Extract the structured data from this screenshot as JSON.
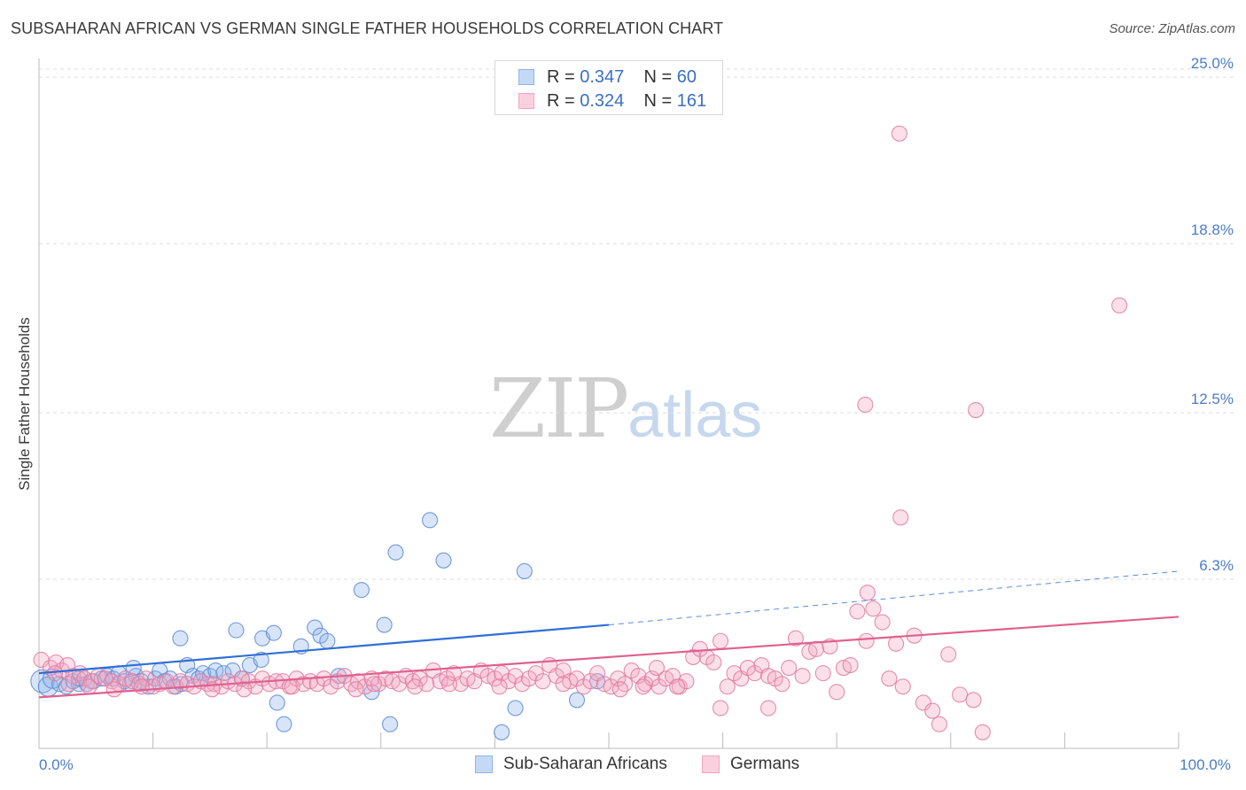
{
  "header": {
    "title": "SUBSAHARAN AFRICAN VS GERMAN SINGLE FATHER HOUSEHOLDS CORRELATION CHART",
    "source": "Source: ZipAtlas.com"
  },
  "watermark": {
    "zip": "ZIP",
    "atlas": "atlas"
  },
  "legend": {
    "r_label": "R =",
    "n_label": "N =",
    "entries": [
      {
        "r": "0.347",
        "n": "60",
        "color": "#8fb4ea"
      },
      {
        "r": "0.324",
        "n": "161",
        "color": "#f4a6bf"
      }
    ]
  },
  "bottom_legend": [
    {
      "label": "Sub-Saharan Africans",
      "color": "#8fb4ea"
    },
    {
      "label": "Germans",
      "color": "#f4a6bf"
    }
  ],
  "chart_data": {
    "type": "scatter",
    "title": "SUBSAHARAN AFRICAN VS GERMAN SINGLE FATHER HOUSEHOLDS CORRELATION CHART",
    "xlabel": "",
    "ylabel": "Single Father Households",
    "xlim": [
      0,
      100
    ],
    "ylim": [
      0,
      25.5
    ],
    "x_tick_labels": [
      {
        "value": 0,
        "label": "0.0%"
      },
      {
        "value": 100,
        "label": "100.0%"
      }
    ],
    "x_minor_ticks": [
      0,
      10,
      20,
      30,
      40,
      50,
      60,
      70,
      80,
      90,
      100
    ],
    "y_ticks": [
      {
        "value": 6.3,
        "label": "6.3%"
      },
      {
        "value": 12.5,
        "label": "12.5%"
      },
      {
        "value": 18.8,
        "label": "18.8%"
      },
      {
        "value": 25.0,
        "label": "25.0%"
      }
    ],
    "grid": true,
    "series": [
      {
        "name": "Sub-Saharan Africans",
        "color": "#8fb4ea",
        "stroke": "#5a8ad6",
        "trend": {
          "x0": 0,
          "y0": 2.8,
          "x1": 50,
          "y1": 4.6,
          "dash_to_x": 100,
          "dash_to_y": 6.6,
          "color": "#2f6fd6"
        },
        "points": [
          [
            0.3,
            2.5
          ],
          [
            0.8,
            2.3
          ],
          [
            1.2,
            2.6
          ],
          [
            1.8,
            2.4
          ],
          [
            2.4,
            2.3
          ],
          [
            3.0,
            2.5
          ],
          [
            3.5,
            2.4
          ],
          [
            4.2,
            2.4
          ],
          [
            4.8,
            2.5
          ],
          [
            5.5,
            2.6
          ],
          [
            6.0,
            2.7
          ],
          [
            6.5,
            2.6
          ],
          [
            7.0,
            2.8
          ],
          [
            7.5,
            2.5
          ],
          [
            8.0,
            2.4
          ],
          [
            8.5,
            2.7
          ],
          [
            8.3,
            3.0
          ],
          [
            9.0,
            2.5
          ],
          [
            9.6,
            2.3
          ],
          [
            10.2,
            2.6
          ],
          [
            10.6,
            2.9
          ],
          [
            11.0,
            2.5
          ],
          [
            11.5,
            2.6
          ],
          [
            12.0,
            2.3
          ],
          [
            12.5,
            2.4
          ],
          [
            13.0,
            3.1
          ],
          [
            13.5,
            2.7
          ],
          [
            14.0,
            2.6
          ],
          [
            14.4,
            2.8
          ],
          [
            15.0,
            2.7
          ],
          [
            15.5,
            2.9
          ],
          [
            16.2,
            2.8
          ],
          [
            17.0,
            2.9
          ],
          [
            17.8,
            2.6
          ],
          [
            18.5,
            3.1
          ],
          [
            19.5,
            3.3
          ],
          [
            12.4,
            4.1
          ],
          [
            17.3,
            4.4
          ],
          [
            19.6,
            4.1
          ],
          [
            20.6,
            4.3
          ],
          [
            23.0,
            3.8
          ],
          [
            24.2,
            4.5
          ],
          [
            24.7,
            4.2
          ],
          [
            25.3,
            4.0
          ],
          [
            26.3,
            2.7
          ],
          [
            28.3,
            5.9
          ],
          [
            29.2,
            2.1
          ],
          [
            30.3,
            4.6
          ],
          [
            30.8,
            0.9
          ],
          [
            31.3,
            7.3
          ],
          [
            34.3,
            8.5
          ],
          [
            35.5,
            7.0
          ],
          [
            20.9,
            1.7
          ],
          [
            21.5,
            0.9
          ],
          [
            40.6,
            0.6
          ],
          [
            41.8,
            1.5
          ],
          [
            42.6,
            6.6
          ],
          [
            47.2,
            1.8
          ],
          [
            49.0,
            2.5
          ],
          [
            3.5,
            2.6
          ]
        ],
        "point_sizes": {
          "0": 13,
          "1": 11,
          "2": 11
        }
      },
      {
        "name": "Germans",
        "color": "#f4a6bf",
        "stroke": "#e17aa0",
        "trend": {
          "x0": 0,
          "y0": 1.9,
          "x1": 100,
          "y1": 4.9,
          "color": "#e0618e"
        },
        "points": [
          [
            0.2,
            3.3
          ],
          [
            1.0,
            3.0
          ],
          [
            1.5,
            3.2
          ],
          [
            2.0,
            2.9
          ],
          [
            2.5,
            3.1
          ],
          [
            3.0,
            2.7
          ],
          [
            3.6,
            2.8
          ],
          [
            4.0,
            2.6
          ],
          [
            4.6,
            2.5
          ],
          [
            5.2,
            2.7
          ],
          [
            5.8,
            2.6
          ],
          [
            6.4,
            2.5
          ],
          [
            7.0,
            2.4
          ],
          [
            7.6,
            2.6
          ],
          [
            8.2,
            2.5
          ],
          [
            8.8,
            2.4
          ],
          [
            9.4,
            2.6
          ],
          [
            10.0,
            2.3
          ],
          [
            10.6,
            2.4
          ],
          [
            11.2,
            2.5
          ],
          [
            11.8,
            2.3
          ],
          [
            12.4,
            2.5
          ],
          [
            13.0,
            2.4
          ],
          [
            13.6,
            2.3
          ],
          [
            14.2,
            2.5
          ],
          [
            14.8,
            2.4
          ],
          [
            15.4,
            2.4
          ],
          [
            16.0,
            2.3
          ],
          [
            16.6,
            2.5
          ],
          [
            17.2,
            2.4
          ],
          [
            17.8,
            2.6
          ],
          [
            18.4,
            2.5
          ],
          [
            19.0,
            2.3
          ],
          [
            19.6,
            2.6
          ],
          [
            20.2,
            2.4
          ],
          [
            20.8,
            2.5
          ],
          [
            21.4,
            2.5
          ],
          [
            22.0,
            2.3
          ],
          [
            22.6,
            2.6
          ],
          [
            23.2,
            2.4
          ],
          [
            23.8,
            2.5
          ],
          [
            24.4,
            2.4
          ],
          [
            25.0,
            2.6
          ],
          [
            25.6,
            2.3
          ],
          [
            26.2,
            2.5
          ],
          [
            26.8,
            2.7
          ],
          [
            27.4,
            2.4
          ],
          [
            28.0,
            2.5
          ],
          [
            28.6,
            2.3
          ],
          [
            29.2,
            2.6
          ],
          [
            29.8,
            2.4
          ],
          [
            30.4,
            2.6
          ],
          [
            31.0,
            2.5
          ],
          [
            31.6,
            2.4
          ],
          [
            32.2,
            2.7
          ],
          [
            32.8,
            2.5
          ],
          [
            33.4,
            2.6
          ],
          [
            34.0,
            2.4
          ],
          [
            34.6,
            2.9
          ],
          [
            35.2,
            2.5
          ],
          [
            35.8,
            2.6
          ],
          [
            36.4,
            2.8
          ],
          [
            37.0,
            2.4
          ],
          [
            37.6,
            2.6
          ],
          [
            38.2,
            2.5
          ],
          [
            38.8,
            2.9
          ],
          [
            39.4,
            2.7
          ],
          [
            40.0,
            2.6
          ],
          [
            40.6,
            2.8
          ],
          [
            41.2,
            2.5
          ],
          [
            41.8,
            2.7
          ],
          [
            42.4,
            2.4
          ],
          [
            43.0,
            2.6
          ],
          [
            43.6,
            2.8
          ],
          [
            44.2,
            2.5
          ],
          [
            44.8,
            3.1
          ],
          [
            45.4,
            2.7
          ],
          [
            46.0,
            2.9
          ],
          [
            46.6,
            2.5
          ],
          [
            47.2,
            2.6
          ],
          [
            47.8,
            2.3
          ],
          [
            48.4,
            2.5
          ],
          [
            49.0,
            2.8
          ],
          [
            49.6,
            2.4
          ],
          [
            50.2,
            2.3
          ],
          [
            50.8,
            2.6
          ],
          [
            51.4,
            2.4
          ],
          [
            52.0,
            2.9
          ],
          [
            52.6,
            2.7
          ],
          [
            53.2,
            2.4
          ],
          [
            53.8,
            2.6
          ],
          [
            54.4,
            2.3
          ],
          [
            55.0,
            2.6
          ],
          [
            55.6,
            2.7
          ],
          [
            56.2,
            2.3
          ],
          [
            56.8,
            2.5
          ],
          [
            57.4,
            3.4
          ],
          [
            58.0,
            3.7
          ],
          [
            58.6,
            3.4
          ],
          [
            59.2,
            3.2
          ],
          [
            59.8,
            4.0
          ],
          [
            60.4,
            2.3
          ],
          [
            61.0,
            2.8
          ],
          [
            61.6,
            2.6
          ],
          [
            62.2,
            3.0
          ],
          [
            62.8,
            2.8
          ],
          [
            63.4,
            3.1
          ],
          [
            64.0,
            2.7
          ],
          [
            64.6,
            2.6
          ],
          [
            65.2,
            2.4
          ],
          [
            65.8,
            3.0
          ],
          [
            66.4,
            4.1
          ],
          [
            67.0,
            2.7
          ],
          [
            67.6,
            3.6
          ],
          [
            68.2,
            3.7
          ],
          [
            68.8,
            2.8
          ],
          [
            69.4,
            3.8
          ],
          [
            70.0,
            2.1
          ],
          [
            70.6,
            3.0
          ],
          [
            71.2,
            3.1
          ],
          [
            71.8,
            5.1
          ],
          [
            72.6,
            4.0
          ],
          [
            73.2,
            5.2
          ],
          [
            74.0,
            4.7
          ],
          [
            74.6,
            2.6
          ],
          [
            75.2,
            3.9
          ],
          [
            75.8,
            2.3
          ],
          [
            76.8,
            4.2
          ],
          [
            77.6,
            1.7
          ],
          [
            78.4,
            1.4
          ],
          [
            79.0,
            0.9
          ],
          [
            79.8,
            3.5
          ],
          [
            80.8,
            2.0
          ],
          [
            82.0,
            1.8
          ],
          [
            82.8,
            0.6
          ],
          [
            59.8,
            1.5
          ],
          [
            64.0,
            1.5
          ],
          [
            72.5,
            12.8
          ],
          [
            75.5,
            22.9
          ],
          [
            82.2,
            12.6
          ],
          [
            75.6,
            8.6
          ],
          [
            94.8,
            16.5
          ],
          [
            72.7,
            5.8
          ],
          [
            56.0,
            2.3
          ],
          [
            54.2,
            3.0
          ],
          [
            36.0,
            2.4
          ],
          [
            27.8,
            2.2
          ],
          [
            18.0,
            2.2
          ],
          [
            9.0,
            2.3
          ],
          [
            6.6,
            2.2
          ],
          [
            4.4,
            2.3
          ],
          [
            2.6,
            2.4
          ],
          [
            1.4,
            2.8
          ],
          [
            15.2,
            2.2
          ],
          [
            22.2,
            2.3
          ],
          [
            29.4,
            2.4
          ],
          [
            33.0,
            2.3
          ],
          [
            40.4,
            2.3
          ],
          [
            46.0,
            2.4
          ],
          [
            51.0,
            2.2
          ],
          [
            53.0,
            2.3
          ]
        ]
      }
    ]
  }
}
